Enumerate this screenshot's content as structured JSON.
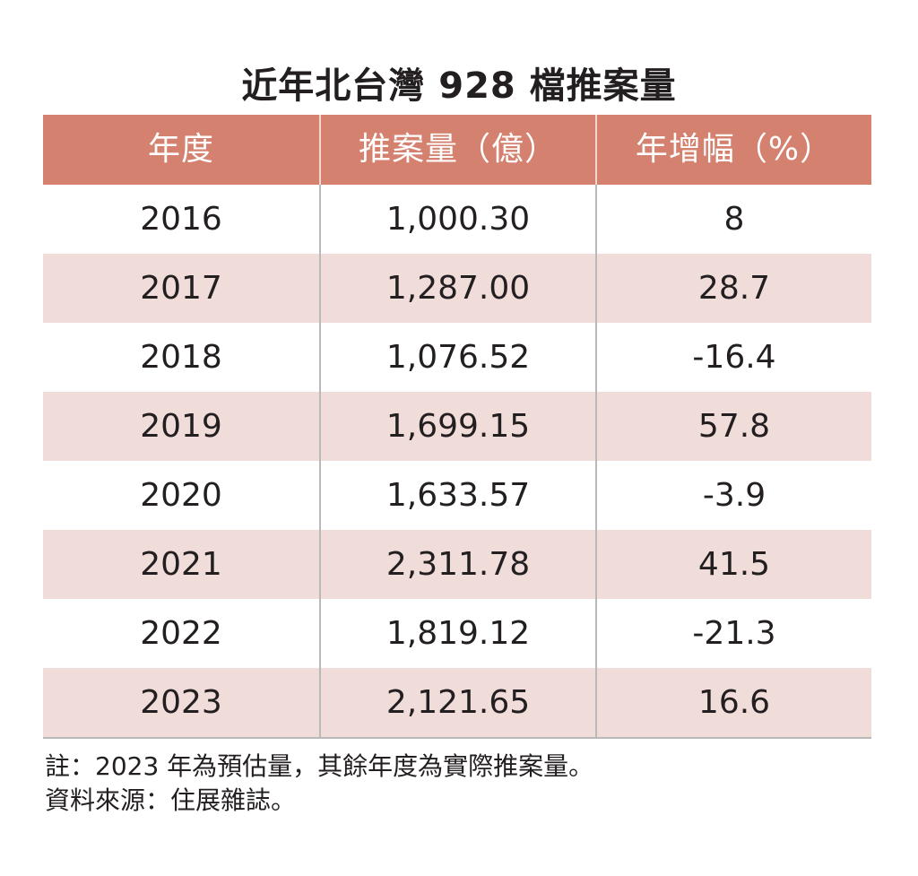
{
  "title": "近年北台灣 928 檔推案量",
  "chart_data": {
    "type": "table",
    "title": "近年北台灣 928 檔推案量",
    "columns": [
      "年度",
      "推案量（億）",
      "年增幅（%）"
    ],
    "rows": [
      {
        "year": "2016",
        "volume": "1,000.30",
        "growth": "8"
      },
      {
        "year": "2017",
        "volume": "1,287.00",
        "growth": "28.7"
      },
      {
        "year": "2018",
        "volume": "1,076.52",
        "growth": "-16.4"
      },
      {
        "year": "2019",
        "volume": "1,699.15",
        "growth": "57.8"
      },
      {
        "year": "2020",
        "volume": "1,633.57",
        "growth": "-3.9"
      },
      {
        "year": "2021",
        "volume": "2,311.78",
        "growth": "41.5"
      },
      {
        "year": "2022",
        "volume": "1,819.12",
        "growth": "-21.3"
      },
      {
        "year": "2023",
        "volume": "2,121.65",
        "growth": "16.6"
      }
    ],
    "colors": {
      "header_bg": "#d4816f",
      "header_text": "#ffffff",
      "stripe": "#f0dcd9",
      "text": "#231f20"
    }
  },
  "notes": {
    "line1": "註：2023 年為預估量，其餘年度為實際推案量。",
    "line2": "資料來源：住展雜誌。"
  }
}
